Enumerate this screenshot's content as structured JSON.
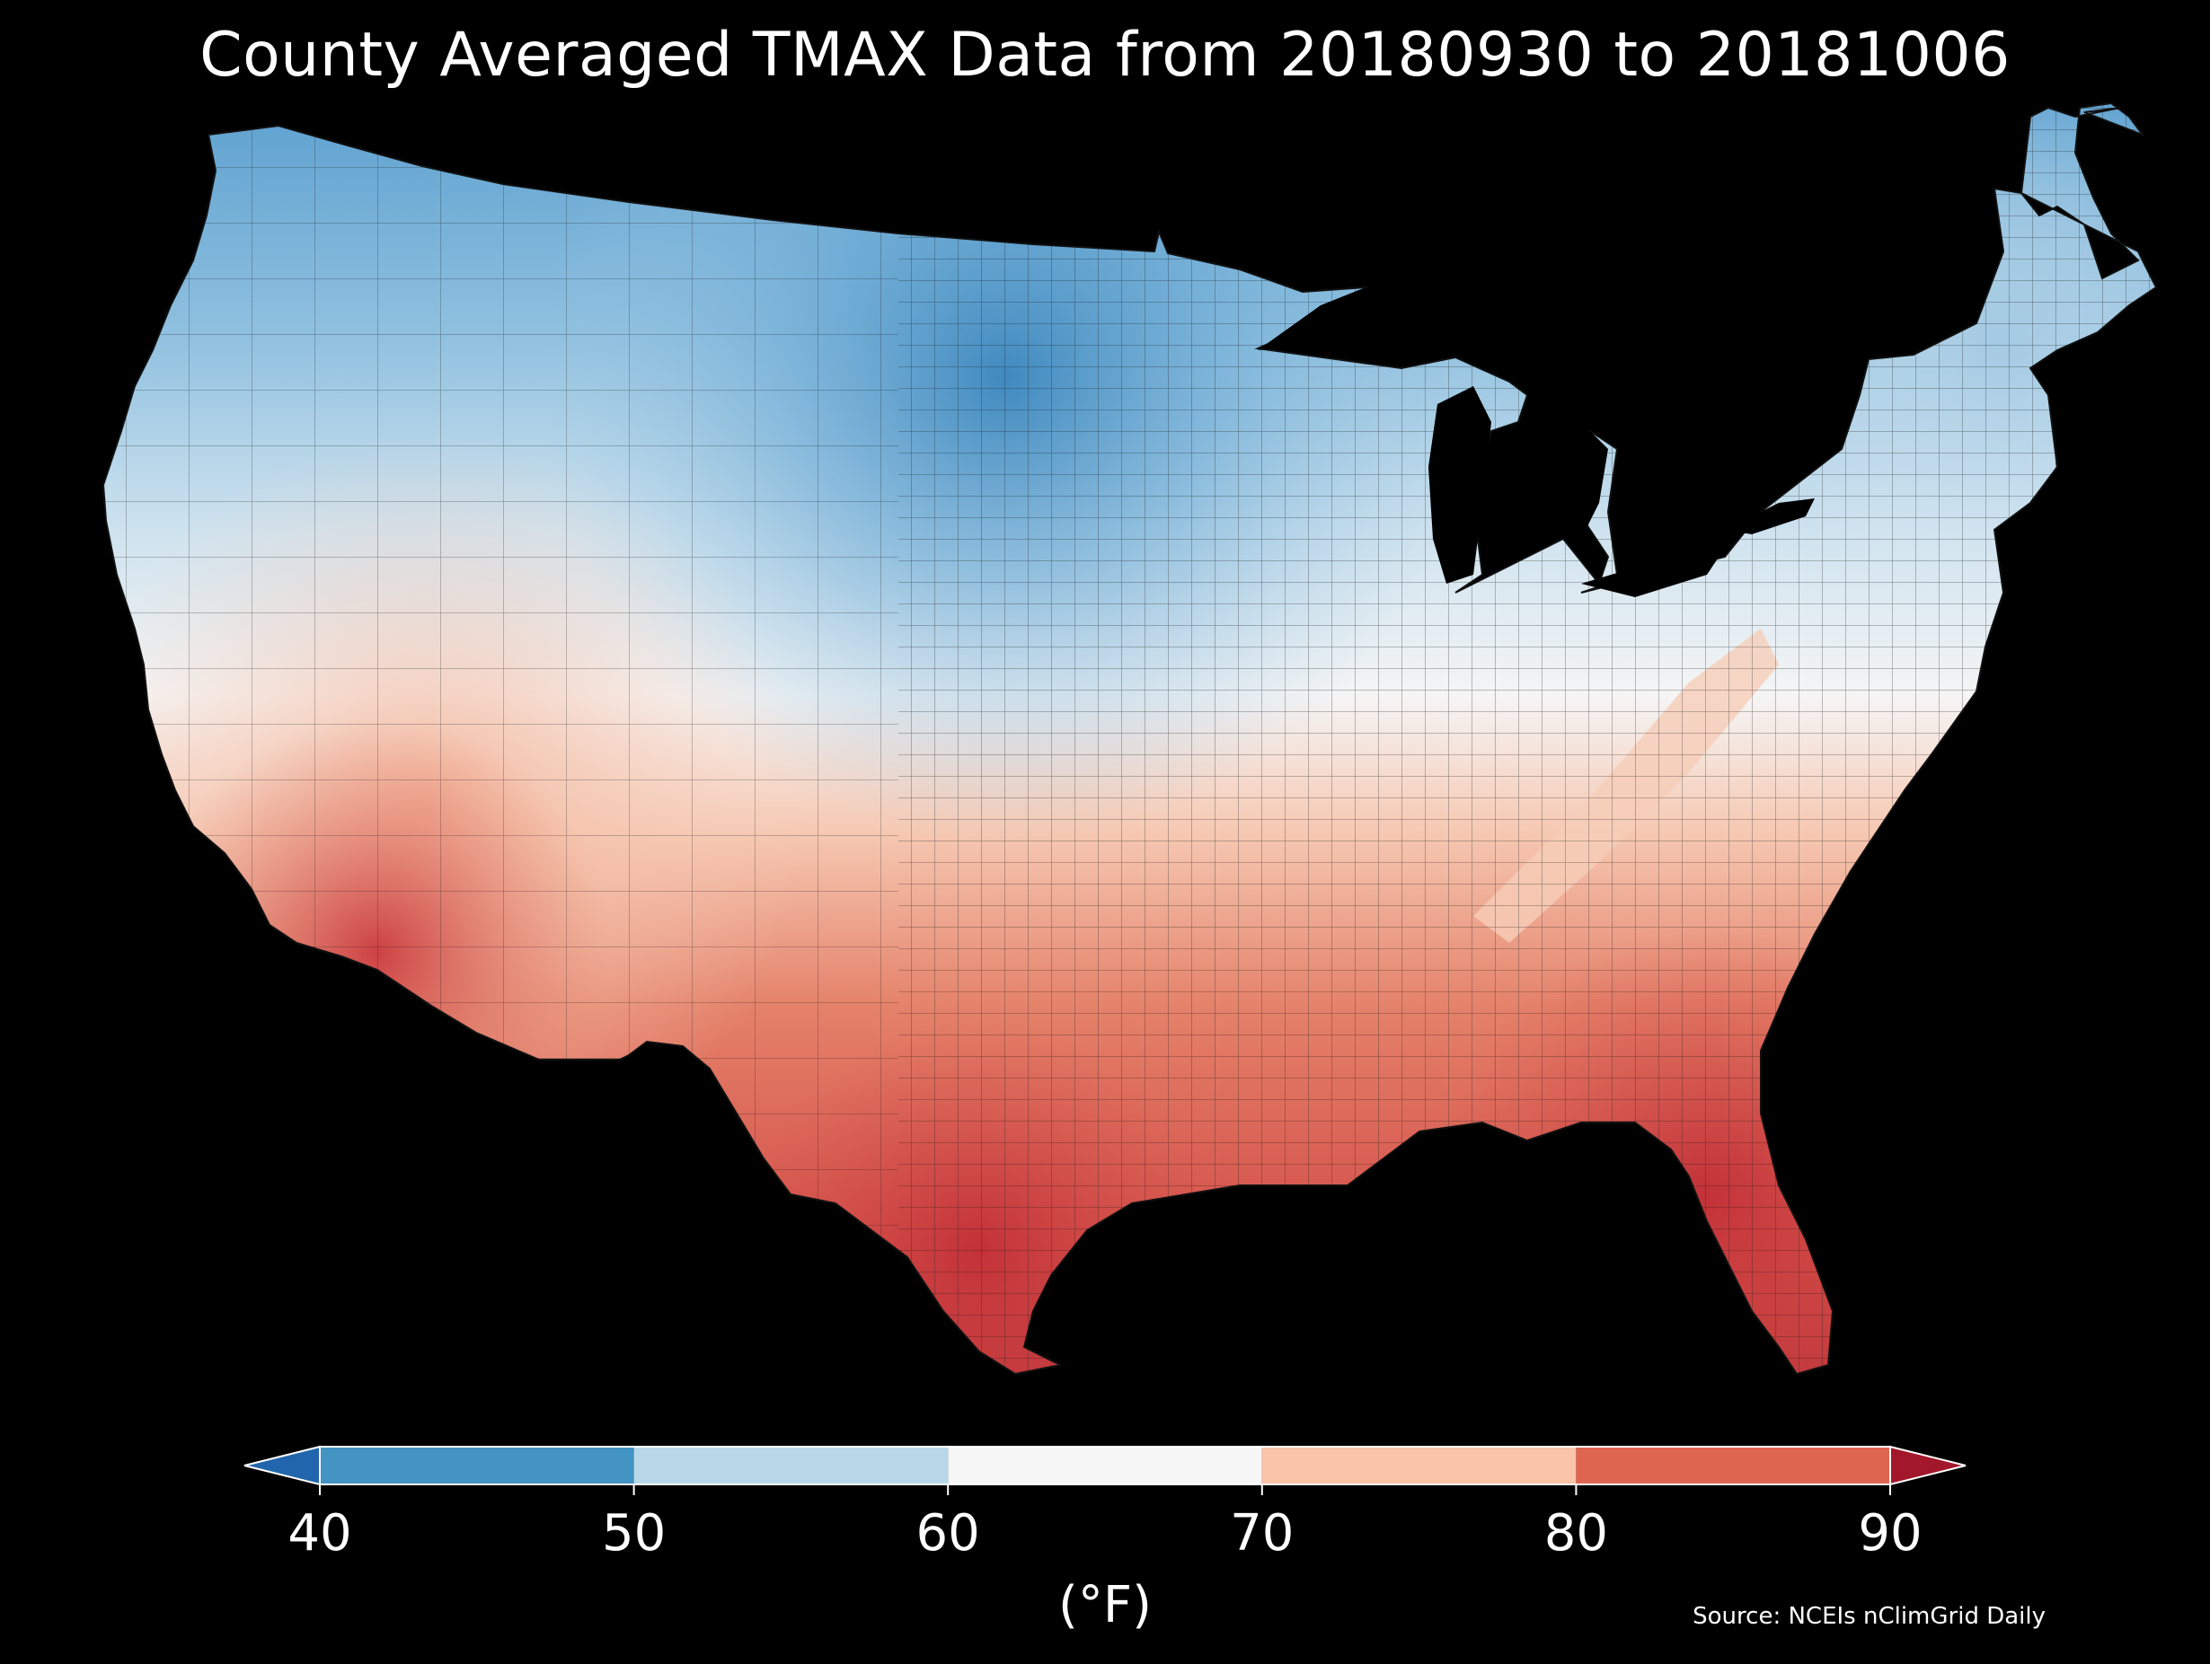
{
  "title": "County Averaged TMAX Data from 20180930 to 20181006",
  "source": "Source: NCEIs nClimGrid Daily",
  "colorbar": {
    "unit_label": "(°F)",
    "ticks": [
      "40",
      "50",
      "60",
      "70",
      "80",
      "90"
    ],
    "bins": [
      {
        "range": "<40",
        "color": "#2166ac"
      },
      {
        "range": "40-50",
        "color": "#4393c3"
      },
      {
        "range": "50-60",
        "color": "#b8d8ea"
      },
      {
        "range": "60-70",
        "color": "#f7f7f7"
      },
      {
        "range": "70-80",
        "color": "#f9c4a8"
      },
      {
        "range": "80-90",
        "color": "#de6650"
      },
      {
        "range": ">90",
        "color": "#a3172b"
      }
    ]
  },
  "colors": {
    "background": "#000000",
    "text": "#ffffff",
    "county_border": "#1a1a1a"
  }
}
